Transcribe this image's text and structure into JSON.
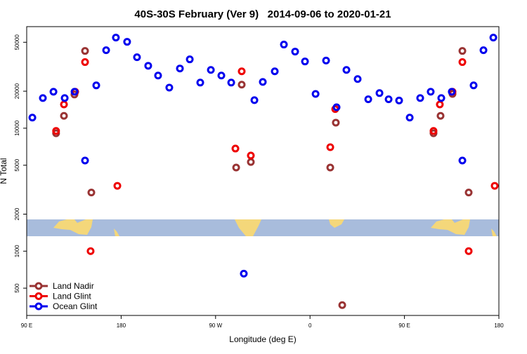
{
  "chart_data": {
    "type": "scatter",
    "title": "40S-30S February (Ver 9)   2014-09-06 to 2020-01-21",
    "x_label": "Longitude (deg E)",
    "y_label": "N Total",
    "log_y": true,
    "legend": "bottom-left",
    "xlim": [
      90,
      540
    ],
    "ylim": [
      300,
      67000
    ],
    "xticks": [
      {
        "value": 90,
        "label": "90 E"
      },
      180,
      {
        "value": 270,
        "label": "90 W"
      },
      {
        "value": 360,
        "label": "0"
      },
      {
        "value": 450,
        "label": "90 E"
      },
      {
        "value": 540,
        "label": "180"
      }
    ],
    "yticks": [
      500,
      1000,
      2000,
      5000,
      10000,
      20000,
      50000
    ],
    "series": [
      {
        "name": "Land Nadir",
        "color": "#993333",
        "x": [
          118,
          125.5,
          135.5,
          145.6,
          151.6,
          289.6,
          294.9,
          303.6,
          379.3,
          384.6,
          390.7,
          477.7,
          484.4,
          495.8,
          505.2,
          511.2
        ],
        "values": [
          9100,
          12600,
          18800,
          42500,
          3000,
          4790,
          22600,
          5310,
          4790,
          11100,
          364,
          9100,
          12600,
          19000,
          42500,
          3000
        ]
      },
      {
        "name": "Land Glint",
        "color": "#ee0000",
        "x": [
          118,
          125.5,
          136.2,
          145.6,
          150.9,
          176.4,
          288.9,
          294.9,
          303.6,
          379.3,
          384,
          477.7,
          483.7,
          495.8,
          505.2,
          511.2,
          536
        ],
        "values": [
          9500,
          15600,
          19800,
          34500,
          1000,
          3400,
          6830,
          29000,
          5990,
          7010,
          14300,
          9500,
          15600,
          19800,
          34500,
          1000,
          3400
        ]
      },
      {
        "name": "Ocean Glint",
        "color": "#0000ee",
        "x": [
          95.4,
          105.4,
          115.5,
          126.2,
          135.6,
          145.6,
          156.3,
          165.7,
          175,
          185.7,
          195.1,
          205.8,
          215.2,
          225.9,
          236,
          245.4,
          255.4,
          265.5,
          275.5,
          284.9,
          296.9,
          307,
          315,
          326.4,
          335.1,
          345.8,
          355.2,
          365.3,
          375.3,
          385.3,
          394.7,
          405.4,
          415.5,
          426.2,
          434.9,
          444.9,
          455,
          465,
          475,
          485.1,
          495.1,
          505.2,
          515.9,
          525.3,
          534.7
        ],
        "values": [
          12200,
          17600,
          19800,
          17600,
          19800,
          5460,
          22300,
          43100,
          54600,
          50400,
          37800,
          32200,
          26800,
          21400,
          30600,
          36300,
          23500,
          29800,
          26800,
          23500,
          656,
          16900,
          23800,
          29000,
          47900,
          42000,
          34900,
          19000,
          35500,
          14800,
          29800,
          25100,
          17200,
          19300,
          17200,
          16800,
          12200,
          17600,
          19800,
          17600,
          19800,
          5460,
          22300,
          43100,
          54600
        ]
      }
    ]
  }
}
